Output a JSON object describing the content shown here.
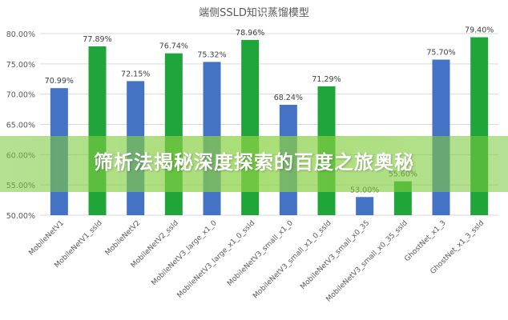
{
  "banner": {
    "text": "筛析法揭秘深度探索的百度之旅奥秘"
  },
  "colors": {
    "base": "#4472c4",
    "ssld": "#1fa53a",
    "grid": "#d9d9d9",
    "axis_text": "#595959"
  },
  "chart_data": {
    "type": "bar",
    "title": "端侧SSLD知识蒸馏模型",
    "categories": [
      "MobileNetV1",
      "MobileNetV1_ssld",
      "MobileNetV2",
      "MobileNetV2_ssld",
      "MobileNetV3_large_x1_0",
      "MobileNetV3_large_x1_0_ssld",
      "MobileNetV3_small_x1_0",
      "MobileNetV3_small_x1_0_ssld",
      "MobileNetV3_small_x0_35",
      "MobileNetV3_small_x0_35_ssld",
      "GhostNet_x1_3",
      "GhostNet_x1_3_ssld"
    ],
    "values": [
      70.99,
      77.89,
      72.15,
      76.74,
      75.32,
      78.96,
      68.24,
      71.29,
      53.0,
      55.6,
      75.7,
      79.4
    ],
    "value_labels": [
      "70.99%",
      "77.89%",
      "72.15%",
      "76.74%",
      "75.32%",
      "78.96%",
      "68.24%",
      "71.29%",
      "53.00%",
      "55.60%",
      "75.70%",
      "79.40%"
    ],
    "bar_types": [
      "base",
      "ssld",
      "base",
      "ssld",
      "base",
      "ssld",
      "base",
      "ssld",
      "base",
      "ssld",
      "base",
      "ssld"
    ],
    "ylim": [
      50,
      80
    ],
    "yticks": [
      50,
      55,
      60,
      65,
      70,
      75,
      80
    ],
    "ytick_labels": [
      "50.00%",
      "55.00%",
      "60.00%",
      "65.00%",
      "70.00%",
      "75.00%",
      "80.00%"
    ],
    "xlabel": "",
    "ylabel": "",
    "grid": true
  }
}
